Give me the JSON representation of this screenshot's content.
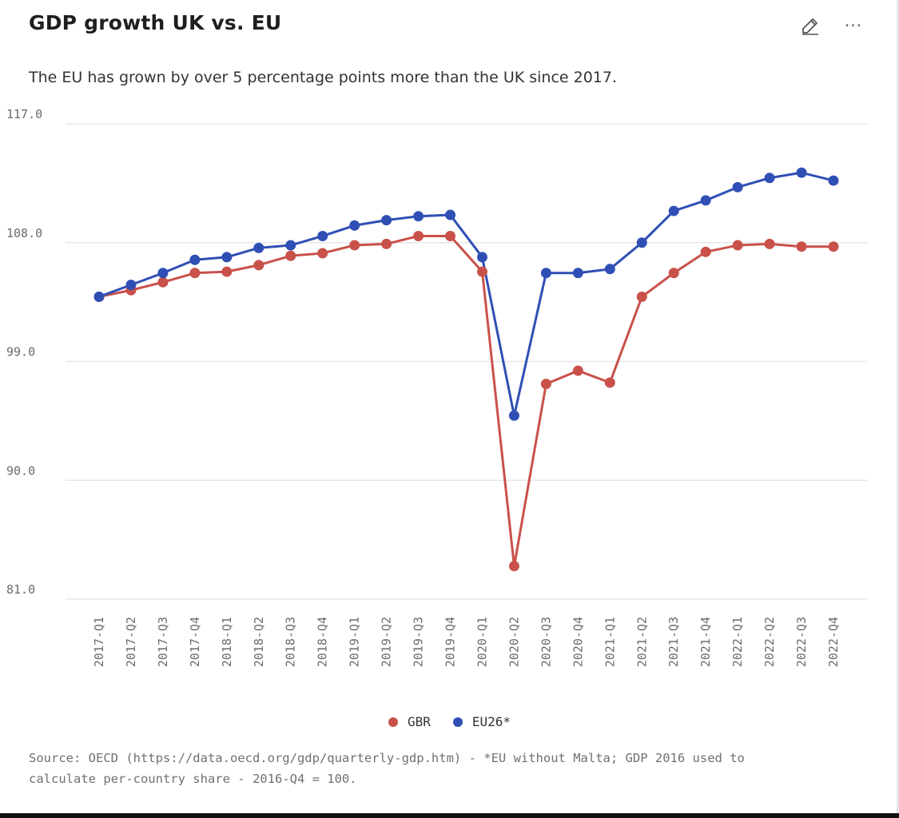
{
  "header": {
    "title": "GDP growth UK vs. EU",
    "subtitle": "The EU has grown by over 5 percentage points more than the UK since 2017.",
    "more_label": "···"
  },
  "icons": {
    "edit": "edit-pencil-icon",
    "more": "more-dots-icon"
  },
  "colors": {
    "gbr": "#c9514a",
    "eu": "#2f4fb5",
    "grid": "#e3e3e3",
    "axis_text": "#6b6b6b"
  },
  "chart_data": {
    "type": "line",
    "title": "GDP growth UK vs. EU",
    "xlabel": "",
    "ylabel": "",
    "ylim": [
      81.0,
      117.0
    ],
    "yticks": [
      "117.0",
      "108.0",
      "99.0",
      "90.0",
      "81.0"
    ],
    "grid": true,
    "legend_position": "bottom-center",
    "categories": [
      "2017-Q1",
      "2017-Q2",
      "2017-Q3",
      "2017-Q4",
      "2018-Q1",
      "2018-Q2",
      "2018-Q3",
      "2018-Q4",
      "2019-Q1",
      "2019-Q2",
      "2019-Q3",
      "2019-Q4",
      "2020-Q1",
      "2020-Q2",
      "2020-Q3",
      "2020-Q4",
      "2021-Q1",
      "2021-Q2",
      "2021-Q3",
      "2021-Q4",
      "2022-Q1",
      "2022-Q2",
      "2022-Q3",
      "2022-Q4"
    ],
    "series": [
      {
        "name": "GBR",
        "color": "#c9514a",
        "values": [
          103.9,
          104.4,
          105.0,
          105.7,
          105.8,
          106.3,
          107.0,
          107.2,
          107.8,
          107.9,
          108.5,
          108.5,
          105.8,
          83.5,
          97.3,
          98.3,
          97.4,
          103.9,
          105.7,
          107.3,
          107.8,
          107.9,
          107.7,
          107.7
        ]
      },
      {
        "name": "EU26*",
        "color": "#2f4fb5",
        "values": [
          103.9,
          104.8,
          105.7,
          106.7,
          106.9,
          107.6,
          107.8,
          108.5,
          109.3,
          109.7,
          110.0,
          110.1,
          106.9,
          94.9,
          105.7,
          105.7,
          106.0,
          108.0,
          110.4,
          111.2,
          112.2,
          112.9,
          113.3,
          112.7
        ]
      }
    ]
  },
  "legend": {
    "items": [
      {
        "label": "GBR",
        "color": "#c9514a"
      },
      {
        "label": "EU26*",
        "color": "#2f4fb5"
      }
    ]
  },
  "footer": {
    "source_line1": "Source: OECD (https://data.oecd.org/gdp/quarterly-gdp.htm) - *EU without Malta; GDP 2016 used to",
    "source_line2": "calculate per-country share - 2016-Q4 = 100."
  }
}
